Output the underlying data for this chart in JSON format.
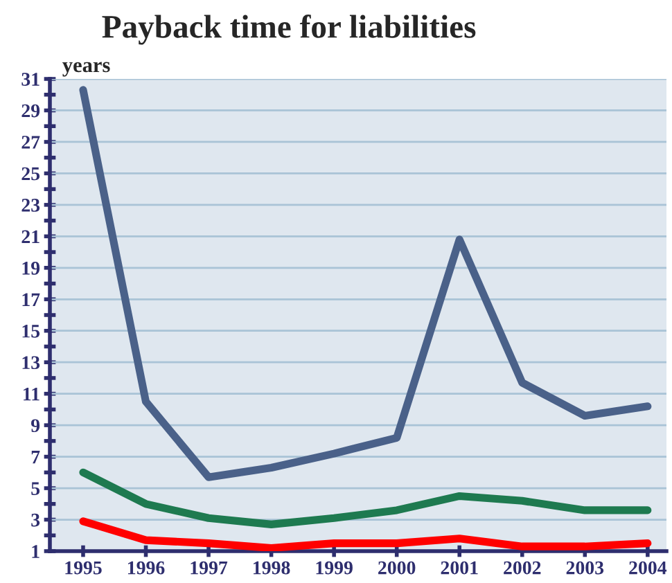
{
  "chart_data": {
    "type": "line",
    "title": "Payback time for liabilities",
    "ylabel": "years",
    "categories": [
      "1995",
      "1996",
      "1997",
      "1998",
      "1999",
      "2000",
      "2001",
      "2002",
      "2003",
      "2004"
    ],
    "series": [
      {
        "color": "#4a6189",
        "values": [
          30.3,
          10.5,
          5.7,
          6.3,
          7.2,
          8.2,
          20.8,
          11.7,
          9.6,
          10.2
        ]
      },
      {
        "color": "#1e7a50",
        "values": [
          6.0,
          4.0,
          3.1,
          2.7,
          3.1,
          3.6,
          4.5,
          4.2,
          3.6,
          3.6
        ]
      },
      {
        "color": "#ff0000",
        "values": [
          2.9,
          1.7,
          1.5,
          1.2,
          1.5,
          1.5,
          1.8,
          1.3,
          1.3,
          1.5
        ]
      }
    ],
    "ylim": [
      1,
      31
    ],
    "yticks": [
      1,
      {
        "value": 2,
        "label": null
      },
      3,
      {
        "value": 4,
        "label": null
      },
      5,
      {
        "value": 6,
        "label": null
      },
      7,
      {
        "value": 8,
        "label": null
      },
      9,
      {
        "value": 10,
        "label": null
      },
      11,
      {
        "value": 12,
        "label": null
      },
      13,
      {
        "value": 14,
        "label": null
      },
      15,
      {
        "value": 16,
        "label": null
      },
      17,
      {
        "value": 18,
        "label": null
      },
      19,
      {
        "value": 20,
        "label": null
      },
      21,
      {
        "value": 22,
        "label": null
      },
      23,
      {
        "value": 24,
        "label": null
      },
      25,
      {
        "value": 26,
        "label": null
      },
      27,
      {
        "value": 28,
        "label": null
      },
      29,
      {
        "value": 30,
        "label": null
      },
      31
    ],
    "grid": "y",
    "legend": false,
    "marker": "none",
    "line_style": "solid"
  }
}
